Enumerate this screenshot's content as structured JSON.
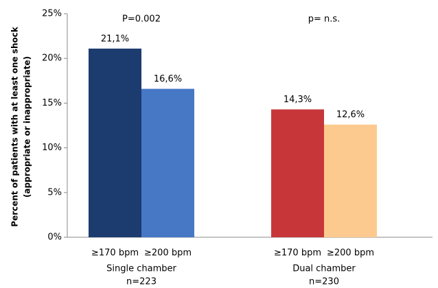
{
  "chart_data": {
    "type": "grouped_bar",
    "y_label": [
      "Percent of patients with at least one shock",
      "(appropriate or inappropriate)"
    ],
    "categories": [
      "Single chamber",
      "Dual chamber"
    ],
    "category_notes": [
      "n=223",
      "n=230"
    ],
    "annotations": [
      "P=0.002",
      "p= n.s."
    ],
    "series": [
      {
        "name": "≥170 bpm",
        "values": [
          21.1,
          14.3
        ],
        "value_labels": [
          "21,1%",
          "14,3%"
        ],
        "colors": [
          "#1c3b6f",
          "#c7373a"
        ]
      },
      {
        "name": "≥200 bpm",
        "values": [
          16.6,
          12.6
        ],
        "value_labels": [
          "16,6%",
          "12,6%"
        ],
        "colors": [
          "#4678c6",
          "#fcca8e"
        ]
      }
    ],
    "ylim": [
      0,
      25
    ],
    "yticks": [
      {
        "value": 0,
        "label": "0%"
      },
      {
        "value": 5,
        "label": "5%"
      },
      {
        "value": 10,
        "label": "10%"
      },
      {
        "value": 15,
        "label": "15%"
      },
      {
        "value": 20,
        "label": "20%"
      },
      {
        "value": 25,
        "label": "25%"
      }
    ]
  }
}
